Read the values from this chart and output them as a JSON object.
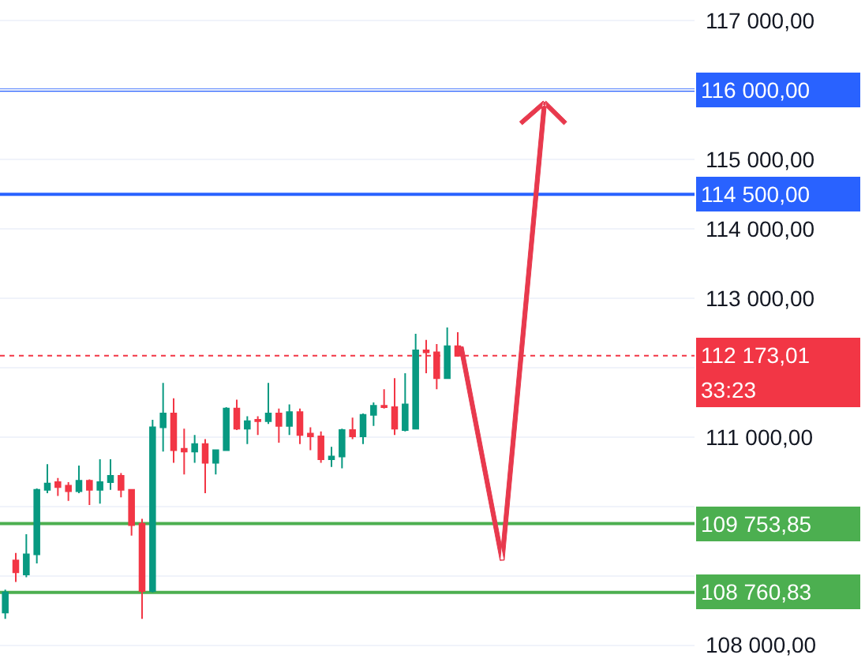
{
  "chart_data": {
    "type": "candlestick",
    "categories": [
      null,
      null,
      null,
      null,
      null,
      null,
      null,
      null,
      null,
      null,
      null,
      null,
      null,
      null,
      null,
      null,
      null,
      null,
      null,
      null,
      null,
      null,
      null,
      null,
      null,
      null,
      null,
      null,
      null,
      null,
      null,
      null,
      null,
      null,
      null,
      null,
      null,
      null,
      null,
      null,
      null,
      null,
      null,
      null,
      null,
      null,
      null,
      null,
      null,
      null,
      null,
      null,
      null,
      null,
      null,
      null,
      null,
      null,
      null,
      null,
      null,
      null,
      null,
      null,
      null,
      null
    ],
    "ohlc": [
      [
        108470,
        108800,
        108380,
        108760
      ],
      [
        109220,
        109330,
        108910,
        109050
      ],
      [
        109020,
        109600,
        108980,
        109310
      ],
      [
        109310,
        110260,
        109180,
        110240
      ],
      [
        110240,
        110610,
        110190,
        110330
      ],
      [
        110350,
        110410,
        110150,
        110280
      ],
      [
        110300,
        110350,
        110080,
        110220
      ],
      [
        110220,
        110590,
        110190,
        110370
      ],
      [
        110370,
        110390,
        110020,
        110240
      ],
      [
        110240,
        110680,
        110040,
        110350
      ],
      [
        110350,
        110680,
        110240,
        110440
      ],
      [
        110440,
        110480,
        110130,
        110240
      ],
      [
        110240,
        110250,
        109580,
        109730
      ],
      [
        109750,
        109820,
        108380,
        108780
      ],
      [
        108780,
        111250,
        108760,
        111140
      ],
      [
        111140,
        111780,
        110790,
        111340
      ],
      [
        111340,
        111560,
        110630,
        110810
      ],
      [
        110830,
        111120,
        110460,
        110790
      ],
      [
        110790,
        111030,
        110630,
        110900
      ],
      [
        110900,
        110970,
        110190,
        110630
      ],
      [
        110630,
        110810,
        110460,
        110810
      ],
      [
        110810,
        111430,
        110810,
        111410
      ],
      [
        111410,
        111540,
        111100,
        111120
      ],
      [
        111120,
        111300,
        110900,
        111230
      ],
      [
        111250,
        111300,
        111030,
        111230
      ],
      [
        111230,
        111780,
        111190,
        111340
      ],
      [
        111340,
        111410,
        110920,
        111160
      ],
      [
        111160,
        111470,
        111030,
        111360
      ],
      [
        111360,
        111410,
        110900,
        111030
      ],
      [
        111050,
        111140,
        110810,
        111010
      ],
      [
        111010,
        111080,
        110630,
        110680
      ],
      [
        110680,
        110860,
        110570,
        110720
      ],
      [
        110720,
        111120,
        110550,
        111100
      ],
      [
        111100,
        111280,
        110970,
        111010
      ],
      [
        111010,
        111340,
        110900,
        111320
      ],
      [
        111320,
        111500,
        111160,
        111450
      ],
      [
        111450,
        111690,
        111410,
        111430
      ],
      [
        111430,
        111850,
        111030,
        111120
      ],
      [
        111100,
        111920,
        111080,
        111470
      ],
      [
        111120,
        112490,
        111120,
        112250
      ],
      [
        112250,
        112400,
        111920,
        112220
      ],
      [
        112220,
        112340,
        111690,
        111850
      ],
      [
        111850,
        112580,
        111850,
        112310
      ],
      [
        112310,
        112510,
        112160,
        112173.01
      ],
      null,
      null,
      null,
      null,
      null,
      null,
      null,
      null,
      null,
      null,
      null,
      null,
      null,
      null,
      null,
      null,
      null,
      null,
      null,
      null,
      null,
      null
    ],
    "ylim": [
      107700,
      117300
    ],
    "yticks": [
      {
        "value": 108000,
        "label": "108 000,00"
      },
      {
        "value": 109000,
        "label": null
      },
      {
        "value": 110000,
        "label": null
      },
      {
        "value": 111000,
        "label": "111 000,00"
      },
      {
        "value": 112000,
        "label": null
      },
      {
        "value": 113000,
        "label": "113 000,00"
      },
      {
        "value": 114000,
        "label": "114 000,00"
      },
      {
        "value": 115000,
        "label": "115 000,00"
      },
      {
        "value": 116000,
        "label": null
      },
      {
        "value": 117000,
        "label": "117 000,00"
      }
    ],
    "ref_lines": [
      {
        "axis": "y",
        "value": 116000,
        "label": "116 000,00",
        "color": "#2962ff",
        "line_style": "solid"
      },
      {
        "axis": "y",
        "value": 114500,
        "label": "114 500,00",
        "color": "#2962ff",
        "line_style": "solid"
      },
      {
        "axis": "y",
        "value": 112173.01,
        "label": "112 173,01",
        "color": "#f23645",
        "line_style": "dotted"
      },
      {
        "axis": "y",
        "value": 109753.85,
        "label": "109 753,85",
        "color": "#4caf50",
        "line_style": "solid"
      },
      {
        "axis": "y",
        "value": 108760.83,
        "label": "108 760,83",
        "color": "#4caf50",
        "line_style": "solid"
      }
    ],
    "annotations": [
      "33:23"
    ],
    "grid": "y",
    "tick_labels": "y"
  }
}
